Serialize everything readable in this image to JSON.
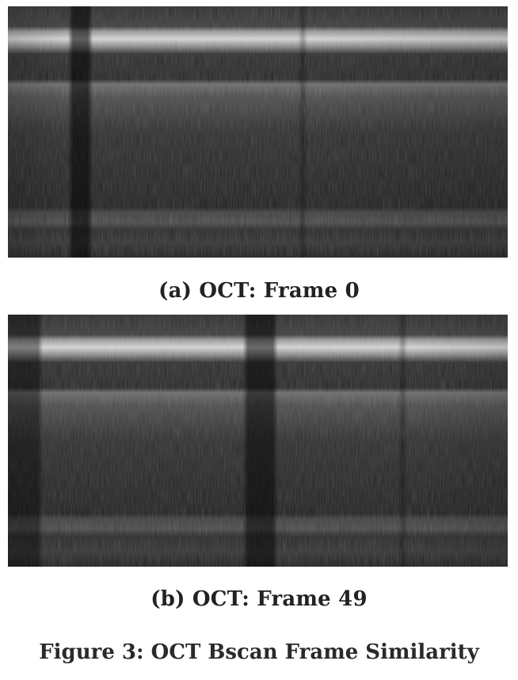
{
  "figure": {
    "caption": "Figure 3: OCT Bscan Frame Similarity",
    "panels": [
      {
        "subcaption": "(a) OCT: Frame 0",
        "image": "oct-bscan-image"
      },
      {
        "subcaption": "(b) OCT: Frame 49",
        "image": "oct-bscan-image"
      }
    ]
  },
  "colors": {
    "background": "#1a1a1a",
    "bright_band": "#cfcfcf",
    "mid_band": "#5a5a5a",
    "text": "#222222"
  }
}
